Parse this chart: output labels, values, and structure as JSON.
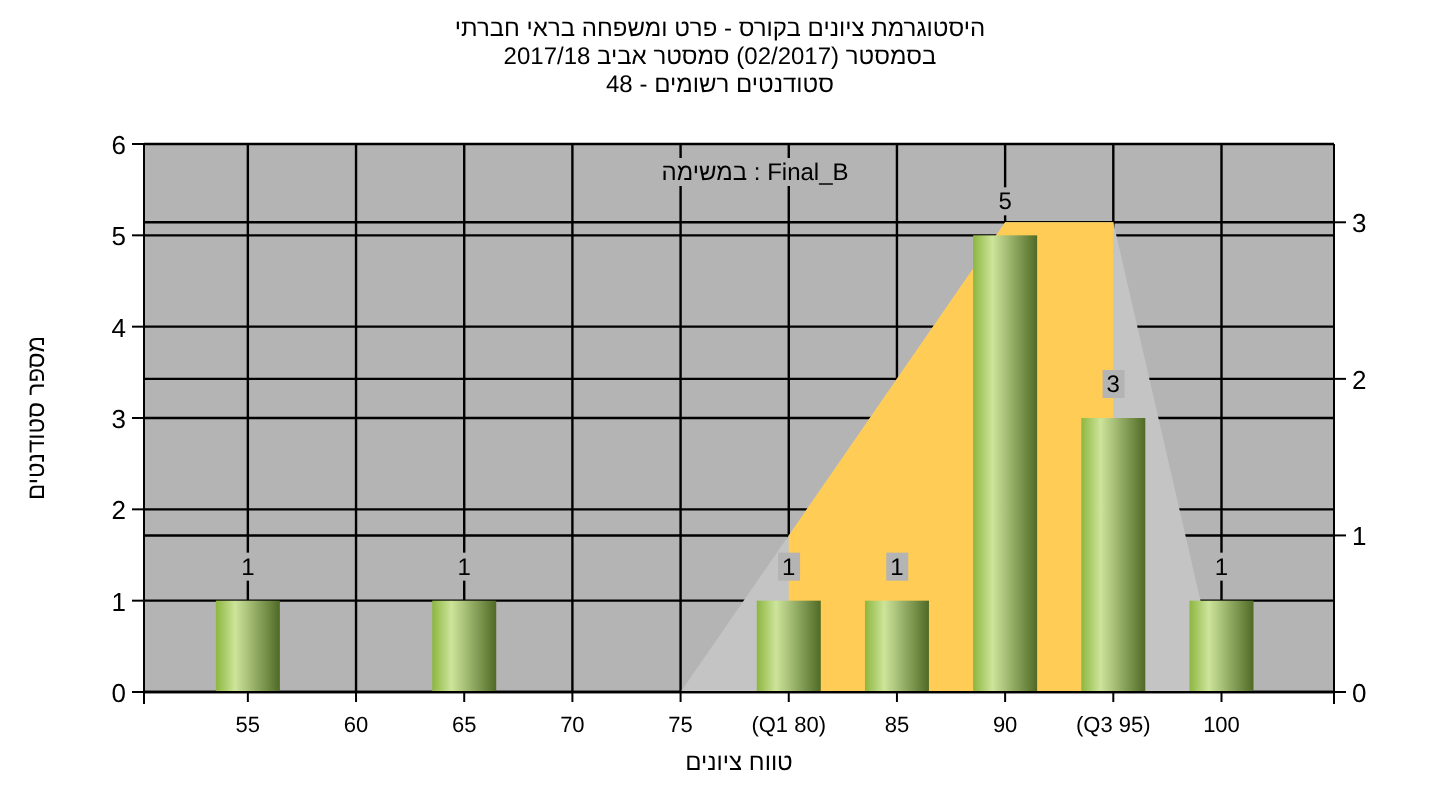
{
  "chart_data": {
    "type": "bar",
    "title": "חברתי בראי ומשפחה פרט - בקורס ציונים היסטוגרמת\n2017/18 אביב סמסטר (02/2017) בסמסטר\n48 - רשומים סטודנטים",
    "xlabel": "ציונים טווח",
    "ylabel": "סטודנטים מספר",
    "annotations": [
      "במשימה : Final_B"
    ],
    "categories": [
      "55",
      "60",
      "65",
      "70",
      "75",
      "(Q1 80)",
      "85",
      "90",
      "(Q3 95)",
      "100"
    ],
    "series": [
      {
        "type": "bar",
        "color": "#8db640",
        "values": [
          1,
          0,
          1,
          0,
          0,
          1,
          1,
          5,
          3,
          1
        ],
        "value_labels": [
          "1",
          null,
          "1",
          null,
          null,
          "1",
          "1",
          "5",
          "3",
          "1"
        ]
      },
      {
        "type": "area",
        "axis": "y2",
        "color": "#c4c4c4",
        "values": [
          null,
          null,
          null,
          null,
          0,
          1,
          2,
          3,
          3,
          0
        ]
      },
      {
        "type": "area",
        "axis": "y2",
        "color": "#ffcc55",
        "values": [
          null,
          null,
          null,
          null,
          null,
          1,
          2,
          3,
          3,
          null
        ]
      }
    ],
    "ylim": [
      0,
      6
    ],
    "yticks": [
      0,
      1,
      2,
      3,
      4,
      5,
      6
    ],
    "y2lim": [
      0,
      3.5
    ],
    "y2ticks": [
      0,
      1,
      2,
      3
    ],
    "grid": true
  }
}
